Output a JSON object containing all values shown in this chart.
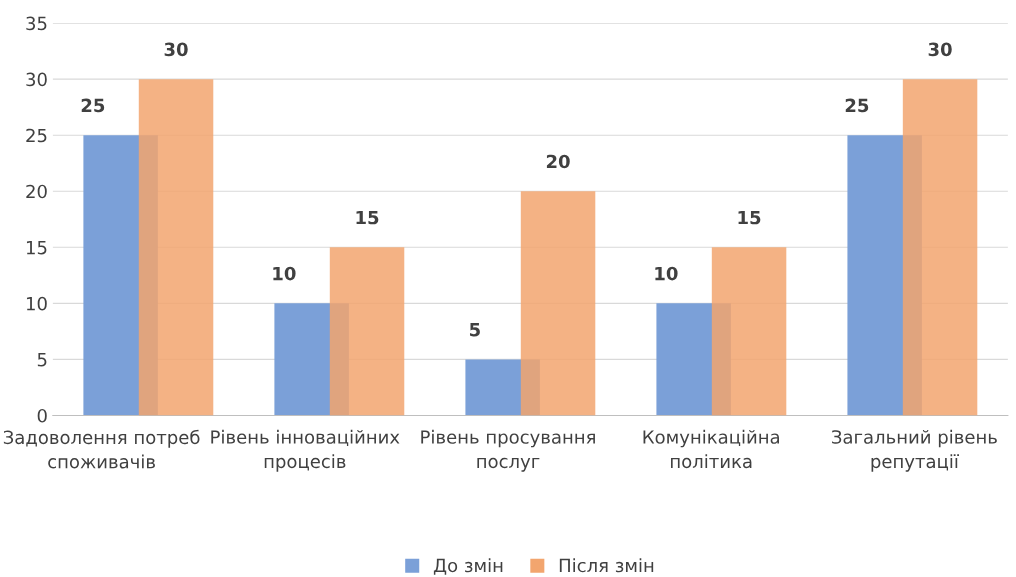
{
  "chart_data": {
    "type": "bar",
    "categories": [
      "Задоволення потреб споживачів",
      "Рівень інноваційних процесів",
      "Рівень просування послуг",
      "Комунікаційна політика",
      "Загальний рівень репутації"
    ],
    "series": [
      {
        "name": "До змін",
        "color": "#7ba0d8",
        "values": [
          25,
          10,
          5,
          10,
          25
        ]
      },
      {
        "name": "Після змін",
        "color": "#f2a56e",
        "values": [
          30,
          15,
          20,
          15,
          30
        ]
      }
    ],
    "ylim": [
      0,
      35
    ],
    "yticks": [
      0,
      5,
      10,
      15,
      20,
      25,
      30,
      35
    ],
    "grid": "y",
    "legend": "bottom",
    "data_labels": true
  }
}
